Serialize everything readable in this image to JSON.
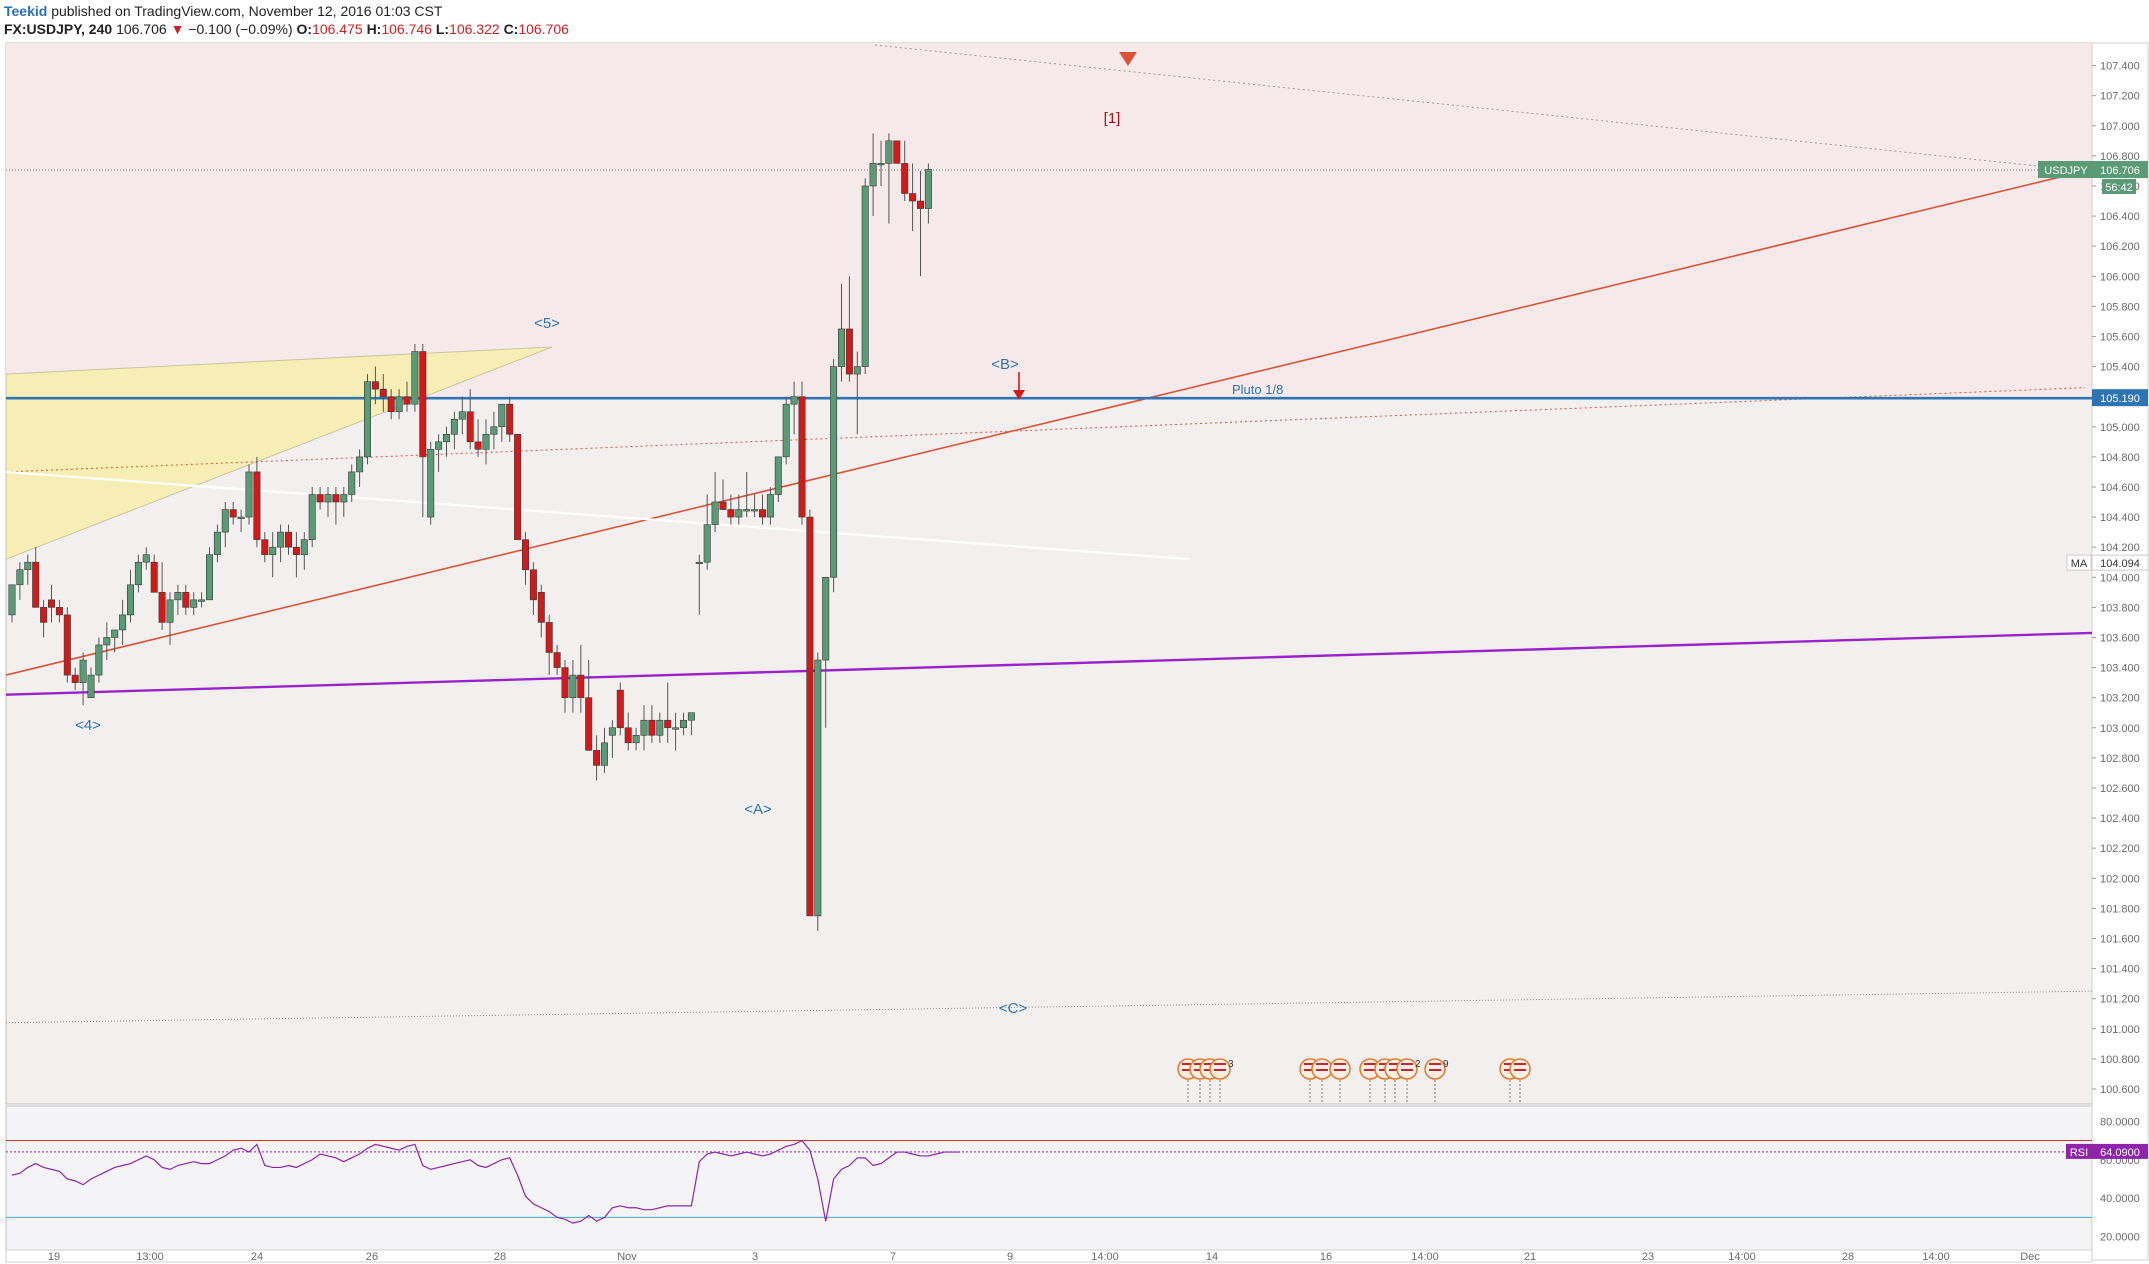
{
  "header": {
    "author": "Teekid",
    "published": "published on TradingView.com, November 12, 2016 01:03 CST",
    "symbol": "FX:USDJPY, 240",
    "last": "106.706",
    "change_arrow": "▼",
    "change": "−0.100 (−0.09%)",
    "o_label": "O:",
    "o": "106.475",
    "h_label": "H:",
    "h": "106.746",
    "l_label": "L:",
    "l": "106.322",
    "c_label": "C:",
    "c": "106.706"
  },
  "colors": {
    "up": "#5a9a74",
    "down": "#d11a1a",
    "pluto_line": "#2e74b5",
    "purple_line": "#9a22cc",
    "red_trend": "#d9533a",
    "rsi": "#8e24aa",
    "rsi_upper": "#cc3333",
    "rsi_lower": "#4aa6c8",
    "label_blue": "#2e74b5",
    "label_red": "#aa1111"
  },
  "chart_data": [
    {
      "type": "candlestick",
      "symbol": "USDJPY",
      "interval": "240",
      "ylim": [
        100.5,
        107.55
      ],
      "price_ticks": [
        "107.400",
        "107.200",
        "107.000",
        "106.800",
        "106.600",
        "106.400",
        "106.200",
        "106.000",
        "105.800",
        "105.600",
        "105.400",
        "105.200",
        "105.000",
        "104.800",
        "104.600",
        "104.400",
        "104.200",
        "104.000",
        "103.800",
        "103.600",
        "103.400",
        "103.200",
        "103.000",
        "102.800",
        "102.600",
        "102.400",
        "102.200",
        "102.000",
        "101.800",
        "101.600",
        "101.400",
        "101.200",
        "101.000",
        "100.800",
        "100.600"
      ],
      "x_ticks": [
        "19",
        "13:00",
        "24",
        "26",
        "28",
        "Nov",
        "3",
        "7",
        "9",
        "14:00",
        "14",
        "16",
        "14:00",
        "21",
        "23",
        "14:00",
        "28",
        "14:00",
        "Dec"
      ],
      "candles": [
        [
          103.75,
          103.95,
          103.7,
          103.95
        ],
        [
          103.95,
          104.1,
          103.85,
          104.05
        ],
        [
          104.05,
          104.15,
          103.95,
          104.1
        ],
        [
          104.1,
          104.2,
          103.8,
          103.8
        ],
        [
          103.8,
          103.85,
          103.6,
          103.7
        ],
        [
          103.85,
          103.95,
          103.7,
          103.8
        ],
        [
          103.8,
          103.85,
          103.7,
          103.75
        ],
        [
          103.75,
          103.8,
          103.3,
          103.35
        ],
        [
          103.35,
          103.4,
          103.25,
          103.3
        ],
        [
          103.3,
          103.5,
          103.15,
          103.45
        ],
        [
          103.2,
          103.4,
          103.2,
          103.35
        ],
        [
          103.35,
          103.6,
          103.3,
          103.55
        ],
        [
          103.55,
          103.7,
          103.45,
          103.6
        ],
        [
          103.6,
          103.65,
          103.5,
          103.65
        ],
        [
          103.65,
          103.85,
          103.55,
          103.75
        ],
        [
          103.75,
          104.05,
          103.7,
          103.95
        ],
        [
          103.95,
          104.15,
          103.9,
          104.1
        ],
        [
          104.1,
          104.2,
          104.05,
          104.15
        ],
        [
          104.1,
          104.15,
          103.9,
          103.9
        ],
        [
          103.9,
          104.1,
          103.65,
          103.7
        ],
        [
          103.7,
          103.9,
          103.55,
          103.85
        ],
        [
          103.85,
          103.95,
          103.75,
          103.9
        ],
        [
          103.9,
          103.95,
          103.75,
          103.8
        ],
        [
          103.8,
          103.9,
          103.75,
          103.85
        ],
        [
          103.85,
          103.9,
          103.8,
          103.85
        ],
        [
          103.85,
          104.2,
          103.85,
          104.15
        ],
        [
          104.15,
          104.35,
          104.1,
          104.3
        ],
        [
          104.3,
          104.5,
          104.2,
          104.45
        ],
        [
          104.45,
          104.5,
          104.35,
          104.4
        ],
        [
          104.4,
          104.45,
          104.3,
          104.4
        ],
        [
          104.4,
          104.75,
          104.35,
          104.7
        ],
        [
          104.7,
          104.8,
          104.2,
          104.25
        ],
        [
          104.25,
          104.3,
          104.1,
          104.15
        ],
        [
          104.15,
          104.3,
          104.0,
          104.2
        ],
        [
          104.2,
          104.35,
          104.1,
          104.3
        ],
        [
          104.3,
          104.35,
          104.15,
          104.2
        ],
        [
          104.2,
          104.3,
          104.0,
          104.15
        ],
        [
          104.15,
          104.3,
          104.05,
          104.25
        ],
        [
          104.25,
          104.6,
          104.2,
          104.55
        ],
        [
          104.55,
          104.6,
          104.45,
          104.5
        ],
        [
          104.5,
          104.6,
          104.4,
          104.55
        ],
        [
          104.55,
          104.6,
          104.35,
          104.5
        ],
        [
          104.5,
          104.6,
          104.4,
          104.55
        ],
        [
          104.55,
          104.75,
          104.5,
          104.7
        ],
        [
          104.7,
          104.85,
          104.6,
          104.8
        ],
        [
          104.8,
          105.35,
          104.75,
          105.3
        ],
        [
          105.3,
          105.4,
          105.15,
          105.25
        ],
        [
          105.25,
          105.35,
          105.1,
          105.2
        ],
        [
          105.2,
          105.25,
          105.05,
          105.1
        ],
        [
          105.1,
          105.25,
          105.05,
          105.2
        ],
        [
          105.2,
          105.3,
          105.1,
          105.15
        ],
        [
          105.15,
          105.55,
          105.1,
          105.5
        ],
        [
          105.5,
          105.55,
          104.4,
          104.8
        ],
        [
          104.4,
          104.9,
          104.35,
          104.85
        ],
        [
          104.85,
          104.95,
          104.7,
          104.9
        ],
        [
          104.9,
          105.0,
          104.8,
          104.95
        ],
        [
          104.95,
          105.1,
          104.85,
          105.05
        ],
        [
          105.05,
          105.2,
          104.95,
          105.1
        ],
        [
          105.1,
          105.25,
          104.85,
          104.9
        ],
        [
          104.9,
          105.05,
          104.8,
          104.85
        ],
        [
          104.85,
          105.05,
          104.75,
          104.95
        ],
        [
          104.95,
          105.1,
          104.85,
          105.0
        ],
        [
          105.0,
          105.15,
          104.9,
          105.15
        ],
        [
          105.15,
          105.2,
          104.9,
          104.95
        ],
        [
          104.95,
          104.95,
          104.25,
          104.25
        ],
        [
          104.25,
          104.3,
          103.95,
          104.05
        ],
        [
          104.05,
          104.1,
          103.75,
          103.85
        ],
        [
          103.9,
          103.95,
          103.6,
          103.7
        ],
        [
          103.7,
          103.75,
          103.35,
          103.5
        ],
        [
          103.5,
          103.55,
          103.35,
          103.4
        ],
        [
          103.4,
          103.45,
          103.1,
          103.2
        ],
        [
          103.2,
          103.45,
          103.1,
          103.35
        ],
        [
          103.35,
          103.55,
          103.1,
          103.2
        ],
        [
          103.2,
          103.45,
          102.85,
          102.85
        ],
        [
          102.85,
          102.95,
          102.65,
          102.75
        ],
        [
          102.75,
          103.0,
          102.7,
          102.9
        ],
        [
          102.95,
          103.05,
          102.8,
          103.0
        ],
        [
          103.25,
          103.3,
          102.95,
          103.0
        ],
        [
          103.0,
          103.1,
          102.85,
          102.9
        ],
        [
          102.9,
          103.0,
          102.85,
          102.95
        ],
        [
          102.95,
          103.15,
          102.85,
          103.05
        ],
        [
          103.05,
          103.15,
          102.9,
          102.95
        ],
        [
          102.95,
          103.1,
          102.9,
          103.05
        ],
        [
          103.05,
          103.3,
          102.9,
          103.0
        ],
        [
          103.0,
          103.1,
          102.85,
          103.0
        ],
        [
          103.0,
          103.1,
          102.95,
          103.05
        ],
        [
          103.05,
          103.1,
          102.95,
          103.1
        ],
        [
          104.1,
          104.15,
          103.75,
          104.1
        ],
        [
          104.1,
          104.55,
          104.05,
          104.35
        ],
        [
          104.35,
          104.7,
          104.3,
          104.5
        ],
        [
          104.5,
          104.65,
          104.45,
          104.45
        ],
        [
          104.45,
          104.55,
          104.35,
          104.4
        ],
        [
          104.4,
          104.55,
          104.35,
          104.45
        ],
        [
          104.45,
          104.7,
          104.4,
          104.45
        ],
        [
          104.45,
          104.55,
          104.4,
          104.45
        ],
        [
          104.45,
          104.55,
          104.35,
          104.4
        ],
        [
          104.4,
          104.6,
          104.35,
          104.55
        ],
        [
          104.55,
          104.8,
          104.5,
          104.8
        ],
        [
          104.8,
          105.2,
          104.75,
          105.15
        ],
        [
          105.15,
          105.3,
          104.95,
          105.2
        ],
        [
          105.2,
          105.3,
          104.35,
          104.4
        ],
        [
          104.4,
          104.45,
          101.75,
          101.75
        ],
        [
          101.75,
          103.5,
          101.65,
          103.45
        ],
        [
          103.45,
          104.0,
          103.0,
          104.0
        ],
        [
          104.0,
          105.45,
          103.9,
          105.4
        ],
        [
          105.4,
          105.95,
          105.3,
          105.65
        ],
        [
          105.65,
          106.0,
          105.3,
          105.35
        ],
        [
          105.35,
          105.5,
          104.95,
          105.4
        ],
        [
          105.4,
          106.65,
          105.35,
          106.6
        ],
        [
          106.6,
          106.95,
          106.4,
          106.75
        ],
        [
          106.75,
          106.9,
          106.6,
          106.75
        ],
        [
          106.75,
          106.95,
          106.35,
          106.9
        ],
        [
          106.9,
          106.9,
          106.75,
          106.75
        ],
        [
          106.75,
          106.9,
          106.5,
          106.55
        ],
        [
          106.55,
          106.75,
          106.3,
          106.5
        ],
        [
          106.5,
          106.7,
          106.0,
          106.45
        ],
        [
          106.45,
          106.75,
          106.35,
          106.71
        ]
      ],
      "annotations": [
        "<5>",
        "<4>",
        "<B>",
        "<A>",
        "<C>",
        "[1]"
      ],
      "price_labels": {
        "symbol_label": "USDJPY",
        "last_price": "106.706",
        "countdown": "56:42",
        "pluto_price": "105.190",
        "ma_label": "MA",
        "ma_value": "104.094"
      },
      "pluto_label": "Pluto 1/8",
      "pluto_level": 105.19,
      "ma_value": 104.094,
      "event_numbers": [
        "3",
        "3",
        "4",
        "2",
        "9"
      ]
    },
    {
      "type": "line",
      "name": "RSI",
      "ylim": [
        13,
        88
      ],
      "y_ticks": [
        "80.0000",
        "60.0000",
        "40.0000",
        "20.0000"
      ],
      "levels": [
        70,
        30
      ],
      "last_value_label": "64.0900",
      "last_value": 64.09,
      "values": [
        52,
        53,
        56,
        58,
        56,
        55,
        54,
        50,
        49,
        47,
        50,
        52,
        54,
        56,
        57,
        58,
        60,
        62,
        60,
        56,
        55,
        57,
        58,
        59,
        58,
        58,
        60,
        62,
        65,
        66,
        64,
        68,
        57,
        56,
        56,
        57,
        56,
        58,
        60,
        63,
        62,
        61,
        59,
        61,
        63,
        66,
        68,
        67,
        66,
        65,
        67,
        68,
        57,
        55,
        56,
        57,
        58,
        59,
        60,
        57,
        56,
        58,
        60,
        61,
        52,
        41,
        37,
        35,
        33,
        30,
        29,
        27,
        28,
        31,
        28,
        30,
        35,
        36,
        35,
        35,
        34,
        34,
        35,
        36,
        36,
        36,
        36,
        59,
        63,
        64,
        63,
        62,
        63,
        64,
        63,
        62,
        63,
        65,
        67,
        68,
        70,
        65,
        50,
        28,
        50,
        55,
        57,
        61,
        61,
        57,
        58,
        61,
        64,
        64,
        63,
        62,
        62,
        63,
        64,
        64,
        64
      ]
    }
  ]
}
